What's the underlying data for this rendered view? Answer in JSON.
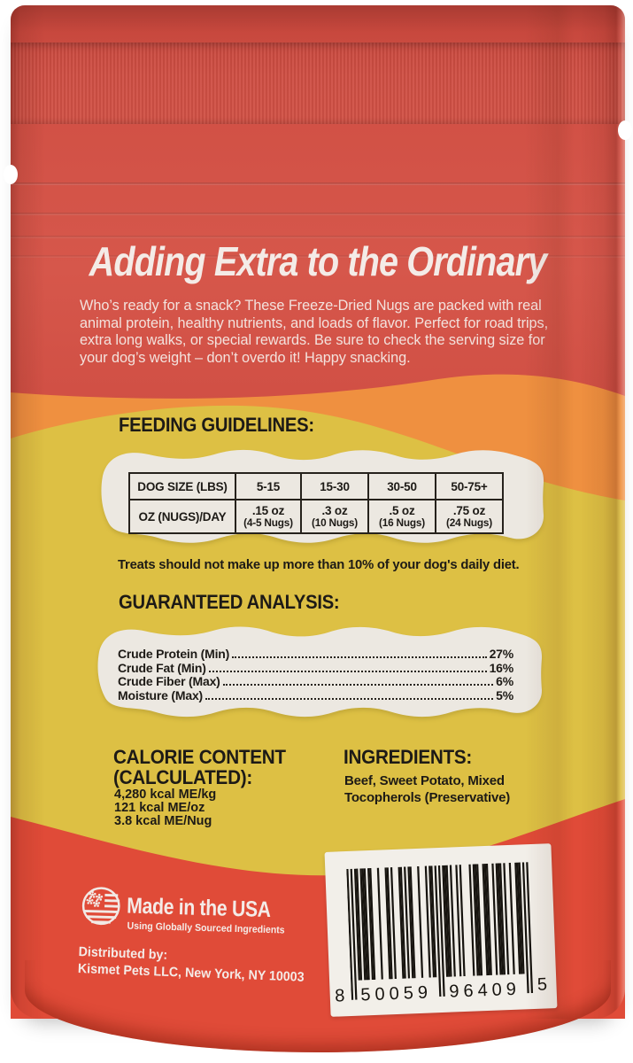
{
  "package": {
    "tagline": "Adding Extra to the Ordinary",
    "intro": "Who’s ready for a snack? These Freeze-Dried Nugs are packed with real animal protein, healthy nutrients, and loads of flavor. Perfect for road trips, extra long walks, or special rewards. Be sure to check the serving size for your dog’s weight – don’t overdo it! Happy snacking.",
    "feeding": {
      "title": "FEEDING GUIDELINES:",
      "size_header": "DOG SIZE (LBS)",
      "amount_header": "OZ (NUGS)/DAY",
      "sizes": [
        "5-15",
        "15-30",
        "30-50",
        "50-75+"
      ],
      "amounts": [
        ".15 oz",
        ".3 oz",
        ".5 oz",
        ".75 oz"
      ],
      "nug_counts": [
        "(4-5 Nugs)",
        "(10 Nugs)",
        "(16 Nugs)",
        "(24 Nugs)"
      ],
      "note": "Treats should not make up more than 10% of your dog's daily diet."
    },
    "analysis": {
      "title": "GUARANTEED ANALYSIS:",
      "rows": [
        {
          "label": "Crude Protein (Min)",
          "value": "27%"
        },
        {
          "label": "Crude Fat (Min)",
          "value": "16%"
        },
        {
          "label": "Crude Fiber (Max)",
          "value": "6%"
        },
        {
          "label": "Moisture (Max) ",
          "value": "5%"
        }
      ]
    },
    "calories": {
      "title_line1": "CALORIE CONTENT",
      "title_line2": "(CALCULATED):",
      "values": [
        "4,280 kcal ME/kg",
        "121 kcal ME/oz",
        "3.8 kcal ME/Nug"
      ]
    },
    "ingredients": {
      "title": "INGREDIENTS:",
      "list": "Beef, Sweet Potato, Mixed Tocopherols (Preservative)"
    },
    "origin": {
      "title": "Made in the USA",
      "subtitle": "Using Globally Sourced Ingredients",
      "distributed_label": "Distributed by:",
      "distributor": "Kismet Pets LLC, New York, NY 10003"
    },
    "barcode": {
      "digits": "850059964095",
      "display_first": "8",
      "display_left": "50059",
      "display_right": "96409",
      "display_last": "5"
    },
    "colors": {
      "bag_red": "#d04f44",
      "wave_orange": "#ef9040",
      "wave_yellow": "#ddc044",
      "bottom_red": "#e04b38",
      "panel_white": "#ece8e1",
      "ink_black": "#1d1a16",
      "ink_white": "#f4ebe7"
    }
  }
}
